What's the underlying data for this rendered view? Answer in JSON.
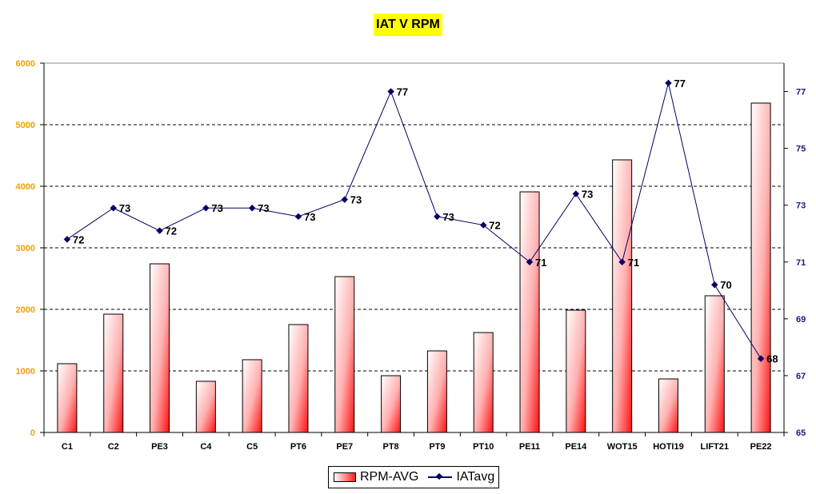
{
  "chart_data": {
    "type": "bar+line",
    "title": "IAT V RPM",
    "categories": [
      "C1",
      "C2",
      "PE3",
      "C4",
      "C5",
      "PT6",
      "PE7",
      "PT8",
      "PT9",
      "PT10",
      "PE11",
      "PE14",
      "WOT15",
      "HOTI19",
      "LIFT21",
      "PE22"
    ],
    "series": [
      {
        "name": "RPM-AVG",
        "type": "bar",
        "axis": "left",
        "values": [
          1117,
          1922,
          2740,
          831,
          1182,
          1753,
          2532,
          922,
          1325,
          1623,
          3909,
          1987,
          4429,
          870,
          2221,
          5351
        ]
      },
      {
        "name": "IATavg",
        "type": "line",
        "axis": "right",
        "values": [
          71.8,
          72.9,
          72.1,
          72.9,
          72.9,
          72.6,
          73.2,
          77.0,
          72.6,
          72.3,
          71.0,
          73.4,
          71.0,
          77.3,
          70.2,
          67.6
        ],
        "labels": [
          "72",
          "73",
          "72",
          "73",
          "73",
          "73",
          "73",
          "77",
          "73",
          "72",
          "71",
          "73",
          "71",
          "77",
          "70",
          "68"
        ]
      }
    ],
    "left_axis": {
      "ylim": [
        0,
        6000
      ],
      "ticks": [
        "0",
        "1000",
        "2000",
        "3000",
        "4000",
        "5000",
        "6000"
      ],
      "tick_values": [
        0,
        1000,
        2000,
        3000,
        4000,
        5000,
        6000
      ]
    },
    "right_axis": {
      "ylim": [
        65,
        78
      ],
      "ticks": [
        "65",
        "67",
        "69",
        "71",
        "73",
        "75",
        "77"
      ],
      "tick_values": [
        65,
        67,
        69,
        71,
        73,
        75,
        77
      ]
    },
    "grid": "horizontal-dashed",
    "legend_position": "bottom",
    "colors": {
      "bar": "#ff2020",
      "line": "#000066",
      "left_axis_text": "#f0a000",
      "right_axis_text": "#1a1a80",
      "title_bg": "#ffff00"
    }
  }
}
